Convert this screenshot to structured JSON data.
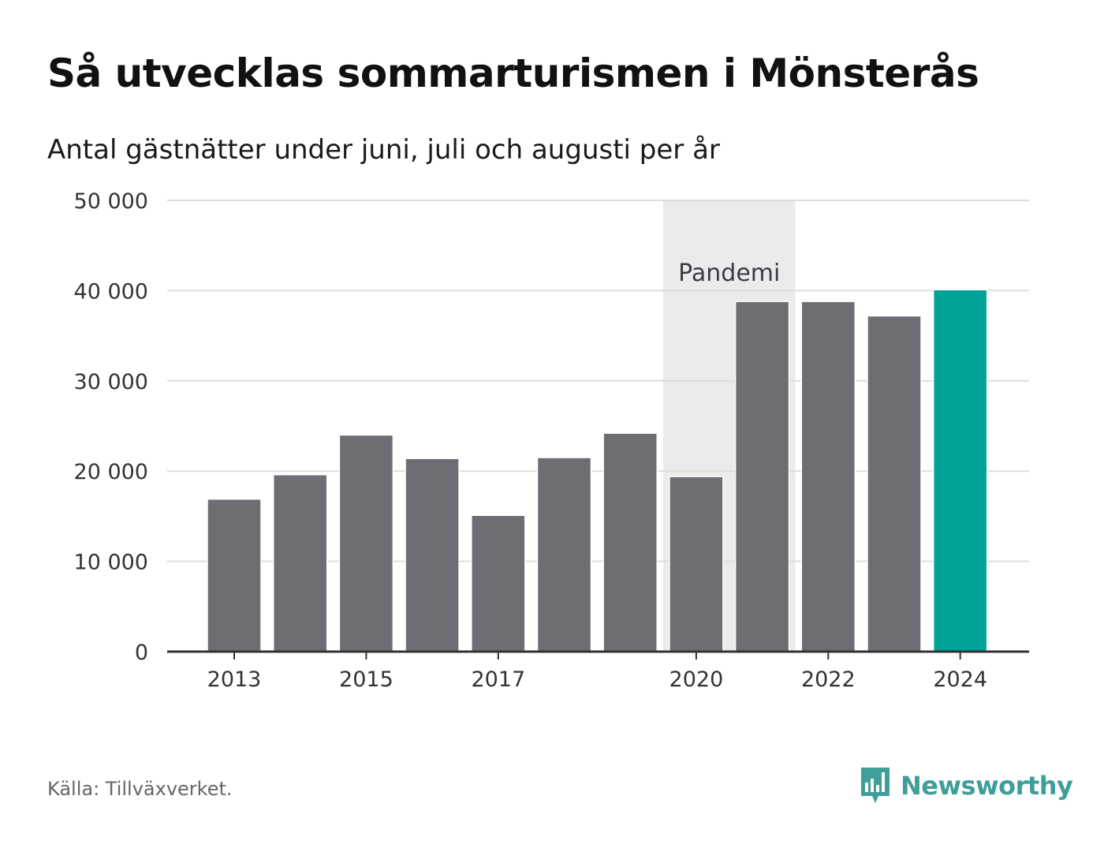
{
  "title": "Så utvecklas sommarturismen i Mönsterås",
  "subtitle": "Antal gästnätter under juni, juli och augusti per år",
  "source": "Källa: Tillväxverket.",
  "brand": {
    "name": "Newsworthy",
    "icon": "newsworthy-logo-icon",
    "color": "#3f9e98"
  },
  "colors": {
    "bar": "#6e6d73",
    "highlight": "#00a398",
    "pandemic_band": "#ebebeb",
    "grid": "#dddddd",
    "axis": "#333333"
  },
  "chart_data": {
    "type": "bar",
    "categories": [
      "2013",
      "2014",
      "2015",
      "2016",
      "2017",
      "2018",
      "2019",
      "2020",
      "2021",
      "2022",
      "2023",
      "2024"
    ],
    "values": [
      16900,
      19600,
      24000,
      21400,
      15100,
      21500,
      24200,
      19400,
      38800,
      38800,
      37200,
      40100
    ],
    "highlight_category": "2024",
    "x_tick_labels": [
      "2013",
      "2015",
      "2017",
      "2020",
      "2022",
      "2024"
    ],
    "y_ticks": [
      0,
      10000,
      20000,
      30000,
      40000,
      50000
    ],
    "y_tick_labels": [
      "0",
      "10 000",
      "20 000",
      "30 000",
      "40 000",
      "50 000"
    ],
    "ylim": [
      0,
      50000
    ],
    "xlabel": "",
    "ylabel": "",
    "grid": true,
    "annotation": {
      "label": "Pandemi",
      "from": "2020",
      "to": "2021"
    }
  }
}
